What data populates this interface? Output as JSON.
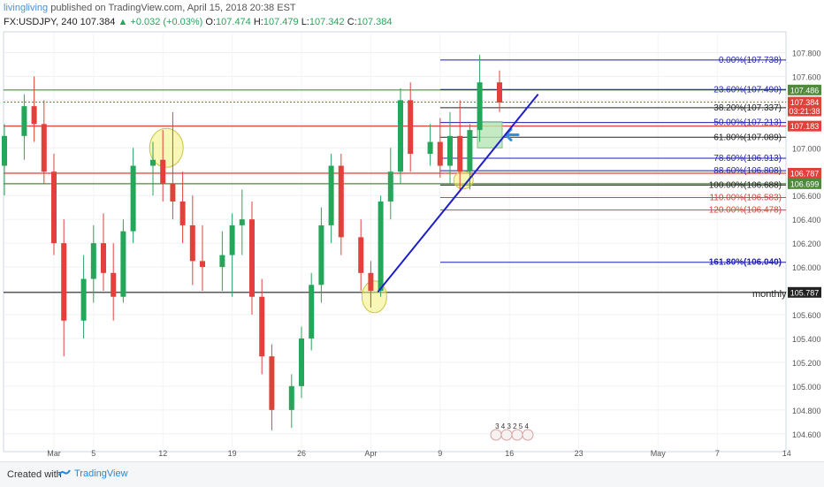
{
  "header": {
    "user": "livingliving",
    "published": "published on TradingView.com, April 15, 2018 20:38 EST",
    "symbol": "FX:USDJPY, 240",
    "last": "107.384",
    "change": "▲ +0.032 (+0.03%)",
    "ohlc": {
      "o_label": "O:",
      "o": "107.474",
      "h_label": "H:",
      "h": "107.479",
      "l_label": "L:",
      "l": "107.342",
      "c_label": "C:",
      "c": "107.384"
    }
  },
  "footer": {
    "created": "Created with",
    "brand": "TradingView"
  },
  "colors": {
    "up": "#26a65b",
    "down": "#e0413a",
    "fib_blue": "#1f1fb0",
    "red_line": "#e0413a",
    "green_line": "#4f8a3c",
    "black_line": "#222222",
    "highlight": "#f2f07a",
    "arrow": "#3d8bd9"
  },
  "chart_data": {
    "type": "candlestick",
    "symbol": "FX:USDJPY",
    "interval": "240",
    "ylim": [
      104.45,
      108.0
    ],
    "y_ticks": [
      "107.800",
      "107.600",
      "107.400",
      "107.200",
      "107.000",
      "106.800",
      "106.600",
      "106.400",
      "106.200",
      "106.000",
      "105.800",
      "105.600",
      "105.400",
      "105.200",
      "105.000",
      "104.800",
      "104.600"
    ],
    "x_ticks": [
      "Mar",
      "5",
      "12",
      "19",
      "26",
      "Apr",
      "9",
      "16",
      "23",
      "May",
      "7",
      "14"
    ],
    "fib_levels": [
      {
        "label": "0.00%(107.738)",
        "value": 107.738
      },
      {
        "label": "23.60%(107.490)",
        "value": 107.49
      },
      {
        "label": "38.20%(107.337)",
        "value": 107.337
      },
      {
        "label": "50.00%(107.213)",
        "value": 107.213
      },
      {
        "label": "61.80%(107.089)",
        "value": 107.089
      },
      {
        "label": "78.60%(106.913)",
        "value": 106.913
      },
      {
        "label": "88.60%(106.808)",
        "value": 106.808
      },
      {
        "label": "100.00%(106.688)",
        "value": 106.688
      },
      {
        "label": "110.00%(106.583)",
        "value": 106.583
      },
      {
        "label": "120.00%(106.478)",
        "value": 106.478
      },
      {
        "label": "161.80%(106.040)",
        "value": 106.04
      }
    ],
    "price_tags": [
      {
        "label": "107.486",
        "value": 107.486,
        "color": "#4f8a3c"
      },
      {
        "label": "107.384",
        "value": 107.384,
        "color": "#e0413a"
      },
      {
        "label": "03:21:38",
        "value": 107.31,
        "color": "#e0413a"
      },
      {
        "label": "107.183",
        "value": 107.183,
        "color": "#e0413a"
      },
      {
        "label": "106.787",
        "value": 106.787,
        "color": "#e0413a"
      },
      {
        "label": "106.699",
        "value": 106.699,
        "color": "#4f8a3c"
      },
      {
        "label": "105.787",
        "value": 105.787,
        "color": "#222222"
      }
    ],
    "horizontal_lines": [
      {
        "value": 107.486,
        "color": "green"
      },
      {
        "value": 107.183,
        "color": "red"
      },
      {
        "value": 106.787,
        "color": "red"
      },
      {
        "value": 106.699,
        "color": "green"
      },
      {
        "value": 105.787,
        "color": "black",
        "label": "monthly"
      }
    ],
    "annotation_monthly": "monthly",
    "trendline": {
      "from": {
        "date": "Apr 2",
        "price": 105.79
      },
      "to": {
        "date": "Apr 18",
        "price": 107.45
      }
    },
    "events_label": "3 4 3 2 5 4",
    "candles": [
      {
        "d": "Feb 22",
        "o": 106.95,
        "h": 107.22,
        "l": 106.65,
        "c": 107.05
      },
      {
        "d": "Feb 23",
        "o": 107.05,
        "h": 107.3,
        "l": 106.7,
        "c": 106.85
      },
      {
        "d": "Feb 24",
        "o": 106.85,
        "h": 107.2,
        "l": 106.6,
        "c": 107.1
      },
      {
        "d": "Feb 26",
        "o": 107.1,
        "h": 107.45,
        "l": 106.9,
        "c": 107.35
      },
      {
        "d": "Feb 27",
        "o": 107.35,
        "h": 107.6,
        "l": 107.05,
        "c": 107.2
      },
      {
        "d": "Feb 28",
        "o": 107.2,
        "h": 107.4,
        "l": 106.7,
        "c": 106.8
      },
      {
        "d": "Mar 1",
        "o": 106.8,
        "h": 106.95,
        "l": 106.1,
        "c": 106.2
      },
      {
        "d": "Mar 2",
        "o": 106.2,
        "h": 106.4,
        "l": 105.25,
        "c": 105.55
      },
      {
        "d": "Mar 4",
        "o": 105.55,
        "h": 106.1,
        "l": 105.4,
        "c": 105.9
      },
      {
        "d": "Mar 5",
        "o": 105.9,
        "h": 106.35,
        "l": 105.7,
        "c": 106.2
      },
      {
        "d": "Mar 6",
        "o": 106.2,
        "h": 106.45,
        "l": 105.8,
        "c": 105.95
      },
      {
        "d": "Mar 7",
        "o": 105.95,
        "h": 106.2,
        "l": 105.55,
        "c": 105.75
      },
      {
        "d": "Mar 8",
        "o": 105.75,
        "h": 106.4,
        "l": 105.7,
        "c": 106.3
      },
      {
        "d": "Mar 9",
        "o": 106.3,
        "h": 107.0,
        "l": 106.2,
        "c": 106.85
      },
      {
        "d": "Mar 11",
        "o": 106.85,
        "h": 107.05,
        "l": 106.6,
        "c": 106.9
      },
      {
        "d": "Mar 12",
        "o": 106.9,
        "h": 107.15,
        "l": 106.55,
        "c": 106.7
      },
      {
        "d": "Mar 13",
        "o": 106.7,
        "h": 107.3,
        "l": 106.4,
        "c": 106.55
      },
      {
        "d": "Mar 14",
        "o": 106.55,
        "h": 106.8,
        "l": 106.2,
        "c": 106.35
      },
      {
        "d": "Mar 15",
        "o": 106.35,
        "h": 106.6,
        "l": 105.85,
        "c": 106.05
      },
      {
        "d": "Mar 16",
        "o": 106.05,
        "h": 106.35,
        "l": 105.8,
        "c": 106.0
      },
      {
        "d": "Mar 18",
        "o": 106.0,
        "h": 106.3,
        "l": 105.8,
        "c": 106.1
      },
      {
        "d": "Mar 19",
        "o": 106.1,
        "h": 106.45,
        "l": 105.75,
        "c": 106.35
      },
      {
        "d": "Mar 20",
        "o": 106.35,
        "h": 106.65,
        "l": 106.1,
        "c": 106.4
      },
      {
        "d": "Mar 21",
        "o": 106.4,
        "h": 106.55,
        "l": 105.6,
        "c": 105.75
      },
      {
        "d": "Mar 22",
        "o": 105.75,
        "h": 105.9,
        "l": 105.1,
        "c": 105.25
      },
      {
        "d": "Mar 23",
        "o": 105.25,
        "h": 105.35,
        "l": 104.63,
        "c": 104.8
      },
      {
        "d": "Mar 25",
        "o": 104.8,
        "h": 105.1,
        "l": 104.65,
        "c": 105.0
      },
      {
        "d": "Mar 26",
        "o": 105.0,
        "h": 105.5,
        "l": 104.9,
        "c": 105.4
      },
      {
        "d": "Mar 27",
        "o": 105.4,
        "h": 105.95,
        "l": 105.3,
        "c": 105.85
      },
      {
        "d": "Mar 28",
        "o": 105.85,
        "h": 106.5,
        "l": 105.7,
        "c": 106.35
      },
      {
        "d": "Mar 29",
        "o": 106.35,
        "h": 106.95,
        "l": 106.2,
        "c": 106.85
      },
      {
        "d": "Mar 30",
        "o": 106.85,
        "h": 106.95,
        "l": 106.1,
        "c": 106.25
      },
      {
        "d": "Apr 1",
        "o": 106.25,
        "h": 106.4,
        "l": 105.8,
        "c": 105.95
      },
      {
        "d": "Apr 2",
        "o": 105.95,
        "h": 106.05,
        "l": 105.66,
        "c": 105.8
      },
      {
        "d": "Apr 3",
        "o": 105.8,
        "h": 106.6,
        "l": 105.75,
        "c": 106.55
      },
      {
        "d": "Apr 4",
        "o": 106.55,
        "h": 107.0,
        "l": 106.4,
        "c": 106.8
      },
      {
        "d": "Apr 5",
        "o": 106.8,
        "h": 107.5,
        "l": 106.7,
        "c": 107.4
      },
      {
        "d": "Apr 6",
        "o": 107.4,
        "h": 107.55,
        "l": 106.8,
        "c": 106.95
      },
      {
        "d": "Apr 8",
        "o": 106.95,
        "h": 107.2,
        "l": 106.85,
        "c": 107.05
      },
      {
        "d": "Apr 9",
        "o": 107.05,
        "h": 107.25,
        "l": 106.75,
        "c": 106.85
      },
      {
        "d": "Apr 10",
        "o": 106.85,
        "h": 107.3,
        "l": 106.7,
        "c": 107.1
      },
      {
        "d": "Apr 11",
        "o": 107.1,
        "h": 107.4,
        "l": 106.65,
        "c": 106.8
      },
      {
        "d": "Apr 12",
        "o": 106.8,
        "h": 107.2,
        "l": 106.65,
        "c": 107.15
      },
      {
        "d": "Apr 13",
        "o": 107.15,
        "h": 107.78,
        "l": 107.05,
        "c": 107.55
      },
      {
        "d": "Apr 15",
        "o": 107.55,
        "h": 107.65,
        "l": 107.3,
        "c": 107.38
      }
    ]
  }
}
